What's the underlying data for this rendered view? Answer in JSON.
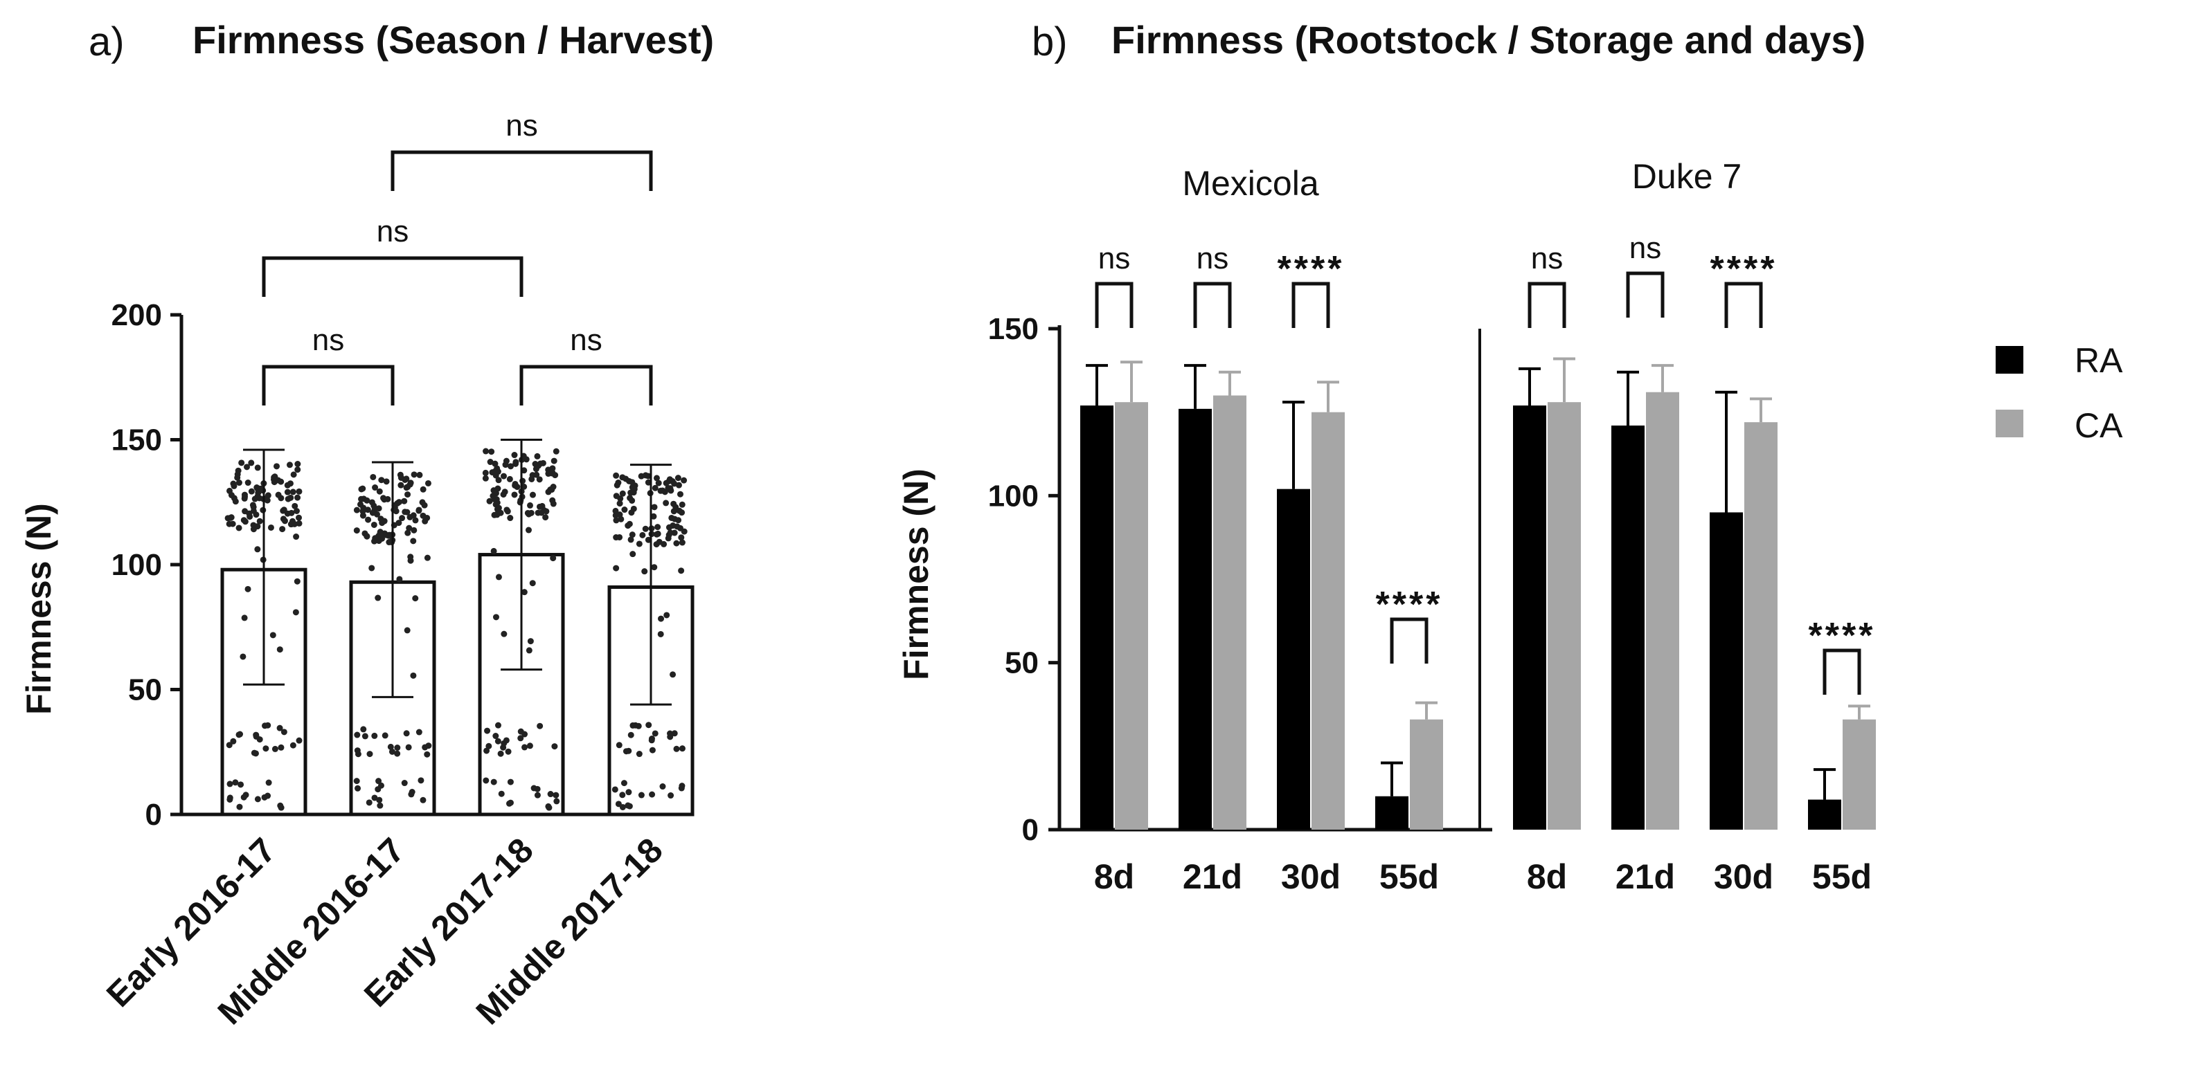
{
  "chart_data": [
    {
      "panel_label": "a)",
      "type": "bar",
      "title": "Firmness (Season / Harvest)",
      "ylabel": "Firmness (N)",
      "xlabel": "",
      "ylim": [
        0,
        200
      ],
      "yticks": [
        "0",
        "50",
        "100",
        "150",
        "200"
      ],
      "categories": [
        "Early 2016-17",
        "Middle 2016-17",
        "Early 2017-18",
        "Middle 2017-18"
      ],
      "values": [
        98,
        93,
        104,
        91
      ],
      "error_low": [
        52,
        47,
        58,
        44
      ],
      "error_high": [
        146,
        141,
        150,
        140
      ],
      "points_overlay": "individual measurements (jittered dots)",
      "comparisons": [
        {
          "from": 0,
          "to": 1,
          "label": "ns"
        },
        {
          "from": 2,
          "to": 3,
          "label": "ns"
        },
        {
          "from": 0,
          "to": 2,
          "label": "ns"
        },
        {
          "from": 1,
          "to": 3,
          "label": "ns"
        }
      ]
    },
    {
      "panel_label": "b)",
      "type": "bar",
      "title": "Firmness (Rootstock / Storage and days)",
      "ylabel": "Firmness (N)",
      "xlabel": "",
      "ylim": [
        0,
        150
      ],
      "yticks": [
        "0",
        "50",
        "100",
        "150"
      ],
      "legend": {
        "position": "right",
        "entries": [
          "RA",
          "CA"
        ]
      },
      "groups": [
        {
          "name": "Mexicola",
          "categories": [
            "8d",
            "21d",
            "30d",
            "55d"
          ],
          "series": [
            {
              "name": "RA",
              "values": [
                127,
                126,
                102,
                10
              ],
              "errors": [
                12,
                13,
                26,
                10
              ]
            },
            {
              "name": "CA",
              "values": [
                128,
                130,
                125,
                33
              ],
              "errors": [
                12,
                7,
                9,
                5
              ]
            }
          ],
          "significance": [
            "ns",
            "ns",
            "****",
            "****"
          ]
        },
        {
          "name": "Duke 7",
          "categories": [
            "8d",
            "21d",
            "30d",
            "55d"
          ],
          "series": [
            {
              "name": "RA",
              "values": [
                127,
                121,
                95,
                9
              ],
              "errors": [
                11,
                16,
                36,
                9
              ]
            },
            {
              "name": "CA",
              "values": [
                128,
                131,
                122,
                33
              ],
              "errors": [
                13,
                8,
                7,
                4
              ]
            }
          ],
          "significance": [
            "ns",
            "ns",
            "****",
            "****"
          ]
        }
      ]
    }
  ],
  "colors": {
    "RA": "#000000",
    "CA": "#a6a6a6",
    "axis": "#111111",
    "bar_a": "#ffffff"
  }
}
